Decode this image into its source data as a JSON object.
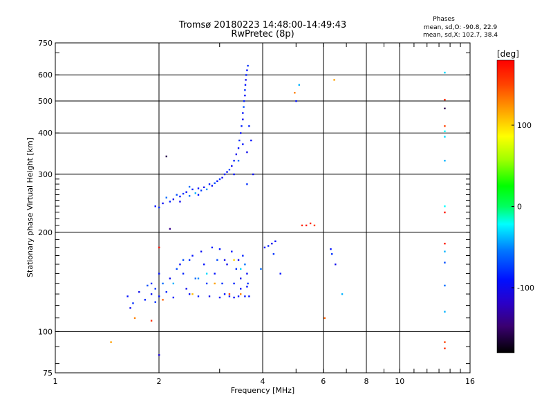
{
  "chart_data": {
    "type": "scatter",
    "title": "Tromsø 20180223 14:48:00-14:49:43",
    "subtitle": "RwPretec (8p)",
    "stats_title": "Phases",
    "stats_lines": [
      "mean, sd,O: -90.8, 22.9",
      "mean, sd,X: 102.7, 38.4"
    ],
    "xlabel": "Frequency [MHz]",
    "ylabel": "Stationary phase Virtual Height [km]",
    "xscale": "log",
    "yscale": "log",
    "xlim": [
      1,
      16
    ],
    "ylim": [
      75,
      750
    ],
    "xticks": [
      1,
      2,
      4,
      6,
      8,
      10,
      16
    ],
    "xtick_labels": [
      "1",
      "2",
      "4",
      "6",
      "8",
      "10",
      "16"
    ],
    "yticks": [
      75,
      100,
      200,
      300,
      400,
      500,
      600,
      750
    ],
    "ytick_labels": [
      "75",
      "100",
      "200",
      "300",
      "400",
      "500",
      "600",
      "750"
    ],
    "colorbar": {
      "label": "[deg]",
      "range": [
        -180,
        180
      ],
      "ticks": [
        100,
        0,
        -100
      ],
      "tick_labels": [
        "100",
        "0",
        "-100"
      ]
    },
    "series": [
      {
        "points": [
          [
            1.95,
            240,
            -90
          ],
          [
            2.0,
            238,
            -80
          ],
          [
            2.05,
            245,
            -95
          ],
          [
            2.1,
            255,
            -60
          ],
          [
            2.15,
            248,
            -85
          ],
          [
            2.2,
            252,
            -100
          ],
          [
            2.25,
            260,
            -70
          ],
          [
            2.3,
            257,
            -90
          ],
          [
            2.35,
            262,
            -80
          ],
          [
            2.4,
            265,
            -95
          ],
          [
            2.45,
            258,
            -60
          ],
          [
            2.5,
            270,
            -85
          ],
          [
            2.55,
            263,
            -40
          ],
          [
            2.6,
            272,
            -90
          ],
          [
            2.65,
            268,
            -75
          ],
          [
            2.7,
            274,
            -100
          ],
          [
            2.75,
            270,
            -50
          ],
          [
            2.8,
            280,
            -85
          ],
          [
            2.85,
            277,
            -95
          ],
          [
            2.9,
            282,
            -70
          ],
          [
            2.95,
            286,
            -90
          ],
          [
            3.0,
            290,
            -80
          ],
          [
            3.05,
            293,
            -100
          ],
          [
            3.1,
            300,
            -85
          ],
          [
            3.15,
            305,
            -90
          ],
          [
            3.2,
            310,
            -70
          ],
          [
            3.25,
            318,
            -95
          ],
          [
            3.3,
            330,
            -85
          ],
          [
            3.35,
            345,
            -100
          ],
          [
            3.4,
            360,
            -90
          ],
          [
            3.42,
            380,
            -80
          ],
          [
            3.45,
            400,
            -95
          ],
          [
            3.47,
            420,
            -85
          ],
          [
            3.5,
            440,
            -100
          ],
          [
            3.5,
            460,
            -90
          ],
          [
            3.52,
            480,
            -70
          ],
          [
            3.53,
            500,
            -85
          ],
          [
            3.55,
            520,
            -95
          ],
          [
            3.55,
            540,
            -80
          ],
          [
            3.56,
            560,
            -90
          ],
          [
            3.57,
            580,
            -100
          ],
          [
            3.58,
            600,
            -85
          ],
          [
            3.6,
            620,
            -90
          ],
          [
            3.62,
            640,
            -80
          ],
          [
            3.4,
            330,
            -60
          ],
          [
            3.5,
            370,
            -90
          ],
          [
            3.6,
            350,
            -100
          ],
          [
            3.65,
            420,
            -85
          ],
          [
            3.7,
            380,
            -90
          ],
          [
            3.75,
            300,
            -95
          ],
          [
            3.6,
            280,
            -80
          ],
          [
            3.3,
            300,
            -90
          ],
          [
            2.3,
            248,
            -100
          ],
          [
            2.45,
            275,
            -60
          ],
          [
            2.6,
            260,
            -90
          ],
          [
            1.62,
            128,
            -90
          ],
          [
            1.68,
            122,
            -80
          ],
          [
            1.75,
            132,
            -100
          ],
          [
            1.82,
            125,
            -85
          ],
          [
            1.85,
            138,
            -70
          ],
          [
            1.9,
            130,
            -95
          ],
          [
            1.95,
            135,
            -80
          ],
          [
            2.0,
            128,
            -90
          ],
          [
            2.05,
            140,
            -60
          ],
          [
            2.1,
            132,
            -85
          ],
          [
            2.15,
            145,
            -100
          ],
          [
            2.2,
            127,
            -90
          ],
          [
            2.25,
            155,
            -70
          ],
          [
            2.3,
            160,
            -95
          ],
          [
            2.35,
            150,
            -85
          ],
          [
            2.4,
            135,
            -100
          ],
          [
            2.45,
            165,
            -80
          ],
          [
            2.5,
            170,
            -90
          ],
          [
            2.55,
            145,
            -60
          ],
          [
            2.6,
            128,
            -85
          ],
          [
            2.65,
            175,
            -95
          ],
          [
            2.7,
            160,
            -90
          ],
          [
            2.75,
            140,
            -75
          ],
          [
            2.8,
            128,
            -100
          ],
          [
            2.85,
            180,
            -85
          ],
          [
            2.9,
            150,
            -90
          ],
          [
            2.95,
            165,
            -70
          ],
          [
            3.0,
            127,
            -95
          ],
          [
            3.05,
            140,
            -80
          ],
          [
            3.1,
            130,
            -90
          ],
          [
            3.15,
            160,
            -100
          ],
          [
            3.2,
            128,
            -85
          ],
          [
            3.25,
            175,
            -90
          ],
          [
            3.3,
            127,
            -95
          ],
          [
            3.35,
            155,
            -80
          ],
          [
            3.4,
            128,
            -90
          ],
          [
            3.45,
            145,
            -100
          ],
          [
            3.5,
            170,
            -85
          ],
          [
            3.55,
            128,
            -90
          ],
          [
            3.6,
            150,
            -95
          ],
          [
            3.62,
            140,
            -80
          ],
          [
            3.65,
            128,
            -90
          ],
          [
            3.55,
            160,
            -60
          ],
          [
            3.45,
            135,
            -90
          ],
          [
            2.2,
            140,
            -40
          ],
          [
            2.6,
            145,
            -50
          ],
          [
            2.75,
            150,
            -30
          ],
          [
            3.1,
            165,
            -100
          ],
          [
            2.0,
            150,
            -90
          ],
          [
            1.9,
            140,
            -80
          ],
          [
            3.0,
            178,
            -90
          ],
          [
            2.35,
            165,
            -70
          ],
          [
            2.45,
            130,
            -95
          ],
          [
            3.3,
            140,
            -85
          ],
          [
            3.4,
            165,
            -100
          ],
          [
            3.6,
            137,
            -90
          ],
          [
            1.65,
            118,
            -100
          ],
          [
            1.95,
            123,
            -80
          ],
          [
            4.05,
            180,
            -90
          ],
          [
            4.15,
            182,
            -85
          ],
          [
            4.25,
            185,
            -100
          ],
          [
            4.35,
            188,
            -90
          ],
          [
            4.3,
            172,
            -80
          ],
          [
            3.95,
            155,
            -60
          ],
          [
            4.5,
            150,
            -90
          ],
          [
            5.0,
            500,
            -90
          ],
          [
            5.1,
            560,
            -40
          ],
          [
            6.3,
            178,
            -90
          ],
          [
            6.35,
            172,
            -80
          ],
          [
            6.5,
            160,
            -100
          ],
          [
            6.8,
            130,
            -40
          ]
        ]
      },
      {
        "points": [
          [
            1.45,
            93,
            120
          ],
          [
            1.7,
            110,
            130
          ],
          [
            1.9,
            108,
            160
          ],
          [
            2.0,
            180,
            170
          ],
          [
            2.05,
            125,
            140
          ],
          [
            2.5,
            130,
            110
          ],
          [
            2.9,
            140,
            120
          ],
          [
            3.2,
            130,
            150
          ],
          [
            3.3,
            165,
            100
          ],
          [
            3.45,
            130,
            130
          ],
          [
            4.95,
            530,
            130
          ],
          [
            5.2,
            210,
            160
          ],
          [
            5.35,
            210,
            170
          ],
          [
            5.5,
            213,
            160
          ],
          [
            5.65,
            210,
            150
          ],
          [
            6.05,
            110,
            140
          ],
          [
            6.45,
            580,
            120
          ],
          [
            13.5,
            505,
            160
          ],
          [
            13.5,
            420,
            150
          ],
          [
            13.5,
            230,
            170
          ],
          [
            13.5,
            185,
            170
          ],
          [
            13.5,
            93,
            150
          ],
          [
            13.5,
            89,
            160
          ]
        ]
      },
      {
        "points": [
          [
            13.5,
            610,
            -30
          ],
          [
            13.5,
            475,
            -160
          ],
          [
            13.5,
            405,
            -20
          ],
          [
            13.5,
            390,
            -30
          ],
          [
            13.5,
            330,
            -40
          ],
          [
            13.5,
            240,
            -20
          ],
          [
            13.5,
            175,
            -40
          ],
          [
            13.5,
            162,
            -70
          ],
          [
            13.5,
            138,
            -60
          ],
          [
            13.5,
            115,
            -40
          ],
          [
            2.0,
            85,
            -110
          ],
          [
            2.1,
            340,
            -160
          ],
          [
            2.15,
            205,
            -140
          ],
          [
            3.45,
            155,
            -30
          ]
        ]
      }
    ]
  }
}
